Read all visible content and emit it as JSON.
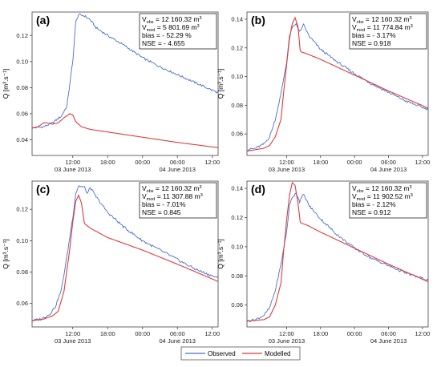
{
  "colors": {
    "observed": "#4a6fc9",
    "modelled": "#e23a3a",
    "axis": "#444444"
  },
  "legend": {
    "observed_label": "Observed",
    "modelled_label": "Modelled",
    "position": "bottom-center"
  },
  "chart_data": [
    {
      "type": "line",
      "panel_label": "(a)",
      "ylabel": "Q [m³.s⁻¹]",
      "ylim": [
        0.028,
        0.138
      ],
      "yticks": [
        0.04,
        0.06,
        0.08,
        0.1,
        0.12
      ],
      "ytick_labels": [
        "0.04",
        "0.06",
        "0.08",
        "0.10",
        "0.12"
      ],
      "xlim": [
        5,
        37
      ],
      "xticks": [
        12,
        18,
        24,
        30,
        36
      ],
      "xtick_labels": [
        "12:00",
        "18:00",
        "00:00",
        "06:00",
        "12:00"
      ],
      "date_labels": [
        {
          "x": 12,
          "text": "03 June 2013"
        },
        {
          "x": 30,
          "text": "04 June 2013"
        }
      ],
      "stats": [
        {
          "prefix": "V",
          "sub": "obs",
          "text": " = 12 160.32 m",
          "sup": "3"
        },
        {
          "prefix": "V",
          "sub": "mod",
          "text": " = 5 801.69 m",
          "sup": "3"
        },
        {
          "prefix": "",
          "sub": "",
          "text": "bias = - 52.29 %",
          "sup": ""
        },
        {
          "prefix": "",
          "sub": "",
          "text": "NSE = - 4.655",
          "sup": ""
        }
      ],
      "series": [
        {
          "name": "Observed",
          "x": [
            5,
            7,
            8.5,
            10,
            11,
            12,
            12.5,
            13,
            14,
            15,
            16,
            18,
            21,
            24,
            27,
            30,
            33,
            37
          ],
          "y": [
            0.049,
            0.05,
            0.053,
            0.058,
            0.066,
            0.1,
            0.13,
            0.136,
            0.135,
            0.132,
            0.126,
            0.12,
            0.112,
            0.103,
            0.096,
            0.09,
            0.084,
            0.076
          ]
        },
        {
          "name": "Modelled",
          "x": [
            5,
            6,
            7,
            7.5,
            8.5,
            9.5,
            10.5,
            11.5,
            12,
            12.5,
            13.5,
            15,
            18,
            24,
            30,
            37
          ],
          "y": [
            0.049,
            0.05,
            0.053,
            0.053,
            0.052,
            0.053,
            0.057,
            0.06,
            0.059,
            0.054,
            0.05,
            0.048,
            0.046,
            0.042,
            0.038,
            0.034
          ]
        }
      ]
    },
    {
      "type": "line",
      "panel_label": "(b)",
      "ylabel": "Q [m³.s⁻¹]",
      "ylim": [
        0.045,
        0.145
      ],
      "yticks": [
        0.06,
        0.08,
        0.1,
        0.12,
        0.14
      ],
      "ytick_labels": [
        "0.06",
        "0.08",
        "0.10",
        "0.12",
        "0.14"
      ],
      "xlim": [
        5,
        37
      ],
      "xticks": [
        12,
        18,
        24,
        30,
        36
      ],
      "xtick_labels": [
        "12:00",
        "18:00",
        "00:00",
        "06:00",
        "12:00"
      ],
      "date_labels": [
        {
          "x": 12,
          "text": "03 June 2013"
        },
        {
          "x": 30,
          "text": "04 June 2013"
        }
      ],
      "stats": [
        {
          "prefix": "V",
          "sub": "obs",
          "text": " = 12 160.32 m",
          "sup": "3"
        },
        {
          "prefix": "V",
          "sub": "mod",
          "text": " = 11 774.84 m",
          "sup": "3"
        },
        {
          "prefix": "",
          "sub": "",
          "text": "bias = - 3.17%",
          "sup": ""
        },
        {
          "prefix": "",
          "sub": "",
          "text": "NSE = 0.918",
          "sup": ""
        }
      ],
      "series": [
        {
          "name": "Observed",
          "x": [
            5,
            6.5,
            8,
            9,
            10,
            11,
            12,
            12.5,
            13,
            13.7,
            14.3,
            15,
            16,
            18,
            21,
            24,
            27,
            30,
            33,
            37
          ],
          "y": [
            0.049,
            0.05,
            0.053,
            0.058,
            0.07,
            0.088,
            0.11,
            0.128,
            0.134,
            0.137,
            0.131,
            0.136,
            0.128,
            0.119,
            0.11,
            0.102,
            0.095,
            0.089,
            0.083,
            0.077
          ]
        },
        {
          "name": "Modelled",
          "x": [
            5,
            8,
            9,
            10,
            11,
            11.5,
            12,
            12.5,
            13,
            13.5,
            14,
            14.4,
            14.7,
            15.5,
            18,
            24,
            30,
            37
          ],
          "y": [
            0.048,
            0.05,
            0.052,
            0.058,
            0.07,
            0.09,
            0.108,
            0.126,
            0.137,
            0.141,
            0.135,
            0.118,
            0.117,
            0.116,
            0.112,
            0.101,
            0.09,
            0.078
          ]
        }
      ]
    },
    {
      "type": "line",
      "panel_label": "(c)",
      "ylabel": "Q [m³.s⁻¹]",
      "ylim": [
        0.045,
        0.138
      ],
      "yticks": [
        0.06,
        0.08,
        0.1,
        0.12
      ],
      "ytick_labels": [
        "0.06",
        "0.08",
        "0.10",
        "0.12"
      ],
      "xlim": [
        5,
        37
      ],
      "xticks": [
        12,
        18,
        24,
        30,
        36
      ],
      "xtick_labels": [
        "12:00",
        "18:00",
        "00:00",
        "06:00",
        "12:00"
      ],
      "date_labels": [
        {
          "x": 12,
          "text": "03 June 2013"
        },
        {
          "x": 30,
          "text": "04 June 2013"
        }
      ],
      "stats": [
        {
          "prefix": "V",
          "sub": "obs",
          "text": " = 12 160.32 m",
          "sup": "3"
        },
        {
          "prefix": "V",
          "sub": "mod",
          "text": " = 11 307.88 m",
          "sup": "3"
        },
        {
          "prefix": "",
          "sub": "",
          "text": "bias = - 7.01%",
          "sup": ""
        },
        {
          "prefix": "",
          "sub": "",
          "text": "NSE = 0.845",
          "sup": ""
        }
      ],
      "series": [
        {
          "name": "Observed",
          "x": [
            5,
            6.5,
            8,
            9,
            10,
            11,
            12,
            12.5,
            13,
            14,
            14.5,
            15,
            16,
            18,
            21,
            24,
            27,
            30,
            33,
            37
          ],
          "y": [
            0.049,
            0.05,
            0.053,
            0.058,
            0.068,
            0.09,
            0.115,
            0.13,
            0.135,
            0.134,
            0.13,
            0.134,
            0.128,
            0.118,
            0.108,
            0.1,
            0.094,
            0.088,
            0.082,
            0.076
          ]
        },
        {
          "name": "Modelled",
          "x": [
            5,
            7,
            8.5,
            9.5,
            10.5,
            11.5,
            12,
            12.5,
            13,
            13.5,
            14,
            15,
            18,
            24,
            30,
            37
          ],
          "y": [
            0.049,
            0.05,
            0.052,
            0.055,
            0.068,
            0.095,
            0.112,
            0.125,
            0.129,
            0.124,
            0.111,
            0.108,
            0.102,
            0.094,
            0.085,
            0.074
          ]
        }
      ]
    },
    {
      "type": "line",
      "panel_label": "(d)",
      "ylabel": "Q [m³.s⁻¹]",
      "ylim": [
        0.045,
        0.145
      ],
      "yticks": [
        0.06,
        0.08,
        0.1,
        0.12,
        0.14
      ],
      "ytick_labels": [
        "0.06",
        "0.08",
        "0.10",
        "0.12",
        "0.14"
      ],
      "xlim": [
        5,
        37
      ],
      "xticks": [
        12,
        18,
        24,
        30,
        36
      ],
      "xtick_labels": [
        "12:00",
        "18:00",
        "00:00",
        "06:00",
        "12:00"
      ],
      "date_labels": [
        {
          "x": 12,
          "text": "03 June 2013"
        },
        {
          "x": 30,
          "text": "04 June 2013"
        }
      ],
      "stats": [
        {
          "prefix": "V",
          "sub": "obs",
          "text": " = 12 160.32 m",
          "sup": "3"
        },
        {
          "prefix": "V",
          "sub": "mod",
          "text": " = 11 902.52 m",
          "sup": "3"
        },
        {
          "prefix": "",
          "sub": "",
          "text": "bias = - 2.12%",
          "sup": ""
        },
        {
          "prefix": "",
          "sub": "",
          "text": "NSE = 0.912",
          "sup": ""
        }
      ],
      "series": [
        {
          "name": "Observed",
          "x": [
            5,
            6.5,
            8,
            9,
            10,
            11,
            12,
            12.5,
            13,
            13.7,
            14.3,
            15,
            16,
            18,
            21,
            24,
            27,
            30,
            33,
            37
          ],
          "y": [
            0.049,
            0.05,
            0.053,
            0.058,
            0.07,
            0.088,
            0.11,
            0.128,
            0.134,
            0.137,
            0.131,
            0.136,
            0.128,
            0.119,
            0.108,
            0.099,
            0.092,
            0.087,
            0.082,
            0.077
          ]
        },
        {
          "name": "Modelled",
          "x": [
            5,
            8,
            9,
            10,
            11,
            11.5,
            12,
            12.5,
            13,
            13.5,
            14,
            14.4,
            14.7,
            15.5,
            18,
            24,
            30,
            37
          ],
          "y": [
            0.049,
            0.05,
            0.052,
            0.06,
            0.075,
            0.098,
            0.118,
            0.135,
            0.144,
            0.142,
            0.13,
            0.117,
            0.116,
            0.115,
            0.11,
            0.099,
            0.088,
            0.076
          ]
        }
      ]
    }
  ]
}
